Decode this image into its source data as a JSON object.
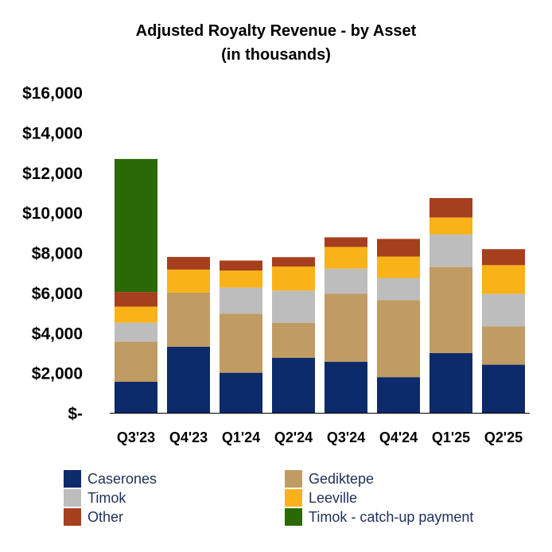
{
  "chart_data": {
    "type": "bar",
    "stacked": true,
    "title": "Adjusted Royalty Revenue - by Asset",
    "subtitle": "(in thousands)",
    "categories": [
      "Q3'23",
      "Q4'23",
      "Q1'24",
      "Q2'24",
      "Q3'24",
      "Q4'24",
      "Q1'25",
      "Q2'25"
    ],
    "ylim": [
      0,
      16000
    ],
    "yticks": [
      0,
      2000,
      4000,
      6000,
      8000,
      10000,
      12000,
      14000,
      16000
    ],
    "ytick_labels": [
      "$-",
      "$2,000",
      "$4,000",
      "$6,000",
      "$8,000",
      "$10,000",
      "$12,000",
      "$14,000",
      "$16,000"
    ],
    "grid": false,
    "legend_position": "bottom",
    "series": [
      {
        "name": "Caserones",
        "color": "#0d2a6b",
        "values": [
          1550,
          3300,
          2000,
          2750,
          2550,
          1780,
          2980,
          2400
        ]
      },
      {
        "name": "Gediktepe",
        "color": "#c09b63",
        "values": [
          2000,
          2700,
          2950,
          1750,
          3400,
          3850,
          4300,
          1920
        ]
      },
      {
        "name": "Timok",
        "color": "#bdbdbd",
        "values": [
          950,
          0,
          1300,
          1600,
          1250,
          1100,
          1620,
          1620
        ]
      },
      {
        "name": "Leeville",
        "color": "#f9b218",
        "values": [
          800,
          1150,
          850,
          1200,
          1080,
          1070,
          850,
          1430
        ]
      },
      {
        "name": "Other",
        "color": "#a63f1e",
        "values": [
          730,
          630,
          500,
          470,
          480,
          880,
          970,
          800
        ]
      },
      {
        "name": "Timok - catch-up payment",
        "color": "#2a6a06",
        "values": [
          6640,
          0,
          0,
          0,
          0,
          0,
          0,
          0
        ]
      }
    ],
    "legend_order": [
      "Caserones",
      "Gediktepe",
      "Timok",
      "Leeville",
      "Other",
      "Timok - catch-up payment"
    ]
  }
}
